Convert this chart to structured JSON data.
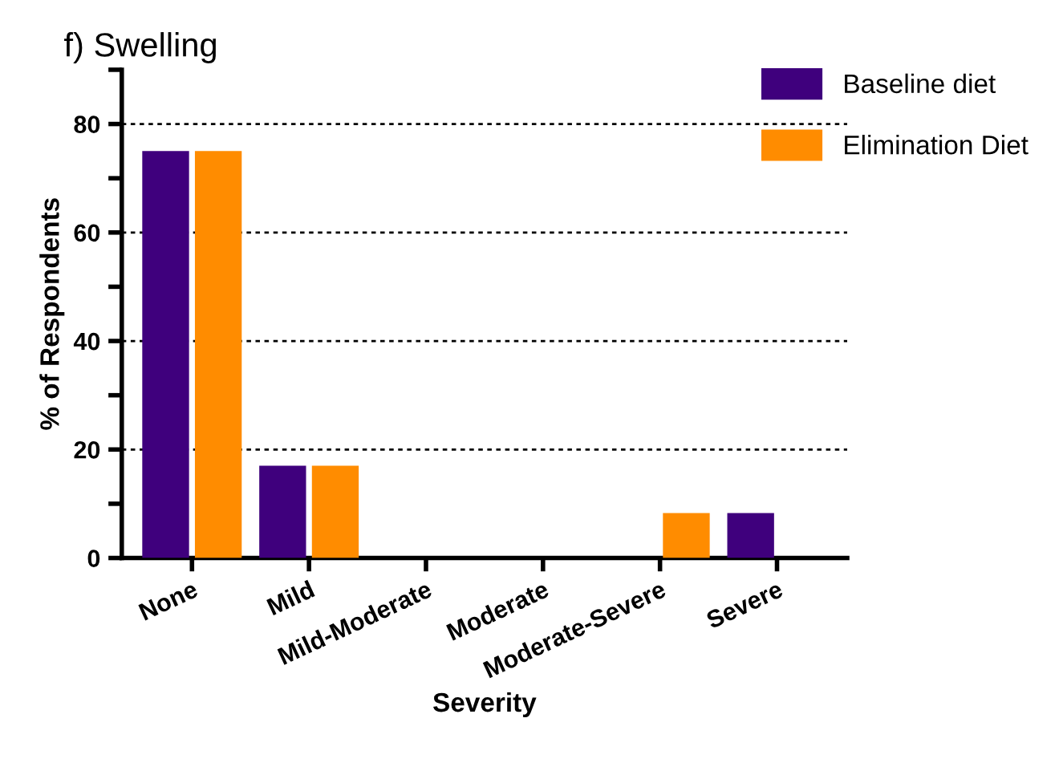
{
  "chart_data": {
    "type": "bar",
    "title": "f) Swelling",
    "xlabel": "Severity",
    "ylabel": "% of Respondents",
    "categories": [
      "None",
      "Mild",
      "Mild-Moderate",
      "Moderate",
      "Moderate-Severe",
      "Severe"
    ],
    "series": [
      {
        "name": "Baseline diet",
        "color": "#3f007d",
        "values": [
          75,
          17,
          0,
          0,
          0,
          8.3
        ]
      },
      {
        "name": "Elimination Diet",
        "color": "#ff8c00",
        "values": [
          75,
          17,
          0,
          0,
          8.3,
          0
        ]
      }
    ],
    "ylim": [
      0,
      90
    ],
    "yticks": [
      0,
      {
        "value": 10,
        "label": null
      },
      20,
      {
        "value": 30,
        "label": null
      },
      40,
      {
        "value": 50,
        "label": null
      },
      60,
      {
        "value": 70,
        "label": null
      },
      80,
      {
        "value": 90,
        "label": null
      }
    ],
    "grid": "y",
    "legend": "top right"
  }
}
